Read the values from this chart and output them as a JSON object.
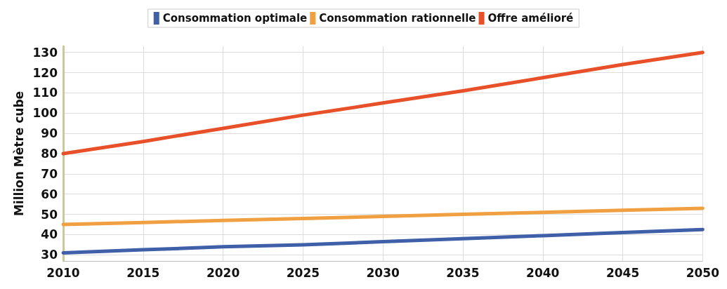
{
  "chart_data": {
    "type": "line",
    "ylabel": "Million Mètre cube",
    "x": [
      2010,
      2015,
      2020,
      2025,
      2030,
      2035,
      2040,
      2045,
      2050
    ],
    "xlim": [
      2010,
      2050
    ],
    "xticks": [
      2010,
      2015,
      2020,
      2025,
      2030,
      2035,
      2040,
      2045,
      2050
    ],
    "ylim": [
      27,
      133
    ],
    "yticks": [
      30,
      40,
      50,
      60,
      70,
      80,
      90,
      100,
      110,
      120,
      130
    ],
    "grid": true,
    "legend": "top",
    "marker": "none",
    "line_style": "solid",
    "series": [
      {
        "name": "Consommation optimale",
        "color": "#3f5fa8",
        "values": [
          31,
          32.5,
          34,
          35,
          36.5,
          38,
          39.5,
          41,
          42.5
        ]
      },
      {
        "name": "Consommation rationnelle",
        "color": "#f0a040",
        "values": [
          45,
          46,
          47,
          48,
          49,
          50,
          51,
          52,
          53
        ]
      },
      {
        "name": "Offre amélioré",
        "color": "#e8502a",
        "values": [
          80,
          86,
          92.5,
          99,
          105,
          111,
          117.5,
          124,
          130
        ]
      }
    ]
  }
}
